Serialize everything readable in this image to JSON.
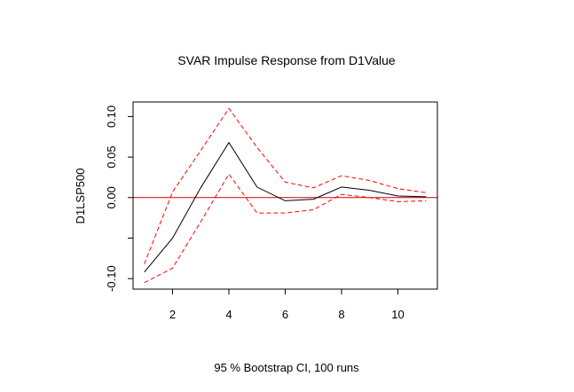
{
  "chart_data": {
    "type": "line",
    "title": "SVAR Impulse Response from D1Value",
    "ylabel": "D1LSP500",
    "xlabel": "95 % Bootstrap CI,  100 runs",
    "x": [
      1,
      2,
      3,
      4,
      5,
      6,
      7,
      8,
      9,
      10,
      11
    ],
    "xlim": [
      0.6,
      11.4
    ],
    "ylim": [
      -0.113,
      0.118
    ],
    "xticks": [
      2,
      4,
      6,
      8,
      10
    ],
    "yticks": [
      -0.1,
      -0.05,
      0.0,
      0.05,
      0.1
    ],
    "ytick_labels": [
      "-0.10",
      "",
      "0.00",
      "0.05",
      "0.10"
    ],
    "zero_line": {
      "y": 0,
      "color": "#cc0000"
    },
    "grid": false,
    "series": [
      {
        "role": "response",
        "values": [
          -0.092,
          -0.05,
          0.012,
          0.068,
          0.013,
          -0.004,
          -0.002,
          0.013,
          0.009,
          0.002,
          0.001
        ],
        "color": "#000000",
        "dash": "solid"
      },
      {
        "role": "upper",
        "values": [
          -0.082,
          0.007,
          0.058,
          0.11,
          0.062,
          0.019,
          0.012,
          0.027,
          0.021,
          0.011,
          0.006
        ],
        "color": "#ff0000",
        "dash": "dashed"
      },
      {
        "role": "lower",
        "values": [
          -0.105,
          -0.087,
          -0.03,
          0.029,
          -0.019,
          -0.019,
          -0.015,
          0.004,
          0.0,
          -0.005,
          -0.004
        ],
        "color": "#ff0000",
        "dash": "dashed"
      }
    ]
  }
}
